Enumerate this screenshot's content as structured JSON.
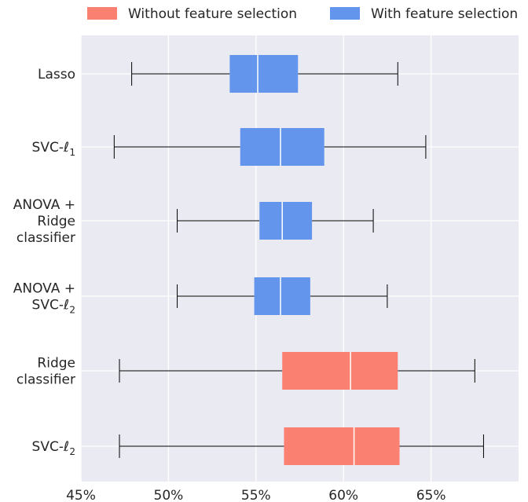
{
  "chart_data": {
    "type": "boxplot",
    "orientation": "horizontal",
    "xlim": [
      45,
      70
    ],
    "x_ticks": [
      45,
      50,
      55,
      60,
      65
    ],
    "x_tick_labels": [
      "45%",
      "50%",
      "55%",
      "60%",
      "65%"
    ],
    "grid": true,
    "legend_placement": "top",
    "legend": [
      {
        "label": "Without feature selection",
        "color": "#fa8072"
      },
      {
        "label": "With feature selection",
        "color": "#6495ed"
      }
    ],
    "categories": [
      {
        "label_lines": [
          "Lasso"
        ],
        "group": "With feature selection",
        "whisker_low": 47.9,
        "q1": 53.5,
        "median": 55.1,
        "q3": 57.4,
        "whisker_high": 63.1
      },
      {
        "label_lines": [
          "SVC-ℓ",
          "1"
        ],
        "subscript": true,
        "group": "With feature selection",
        "whisker_low": 46.9,
        "q1": 54.1,
        "median": 56.4,
        "q3": 58.9,
        "whisker_high": 64.7
      },
      {
        "label_lines": [
          "ANOVA +",
          "Ridge",
          "classifier"
        ],
        "group": "With feature selection",
        "whisker_low": 50.5,
        "q1": 55.2,
        "median": 56.5,
        "q3": 58.2,
        "whisker_high": 61.7
      },
      {
        "label_lines": [
          "ANOVA +",
          "SVC-ℓ",
          "2"
        ],
        "subscript": true,
        "group": "With feature selection",
        "whisker_low": 50.5,
        "q1": 54.9,
        "median": 56.4,
        "q3": 58.1,
        "whisker_high": 62.5
      },
      {
        "label_lines": [
          "Ridge",
          "classifier"
        ],
        "group": "Without feature selection",
        "whisker_low": 47.2,
        "q1": 56.5,
        "median": 60.4,
        "q3": 63.1,
        "whisker_high": 67.5
      },
      {
        "label_lines": [
          "SVC-ℓ",
          "2"
        ],
        "subscript": true,
        "group": "Without feature selection",
        "whisker_low": 47.2,
        "q1": 56.6,
        "median": 60.6,
        "q3": 63.2,
        "whisker_high": 68.0
      }
    ]
  }
}
